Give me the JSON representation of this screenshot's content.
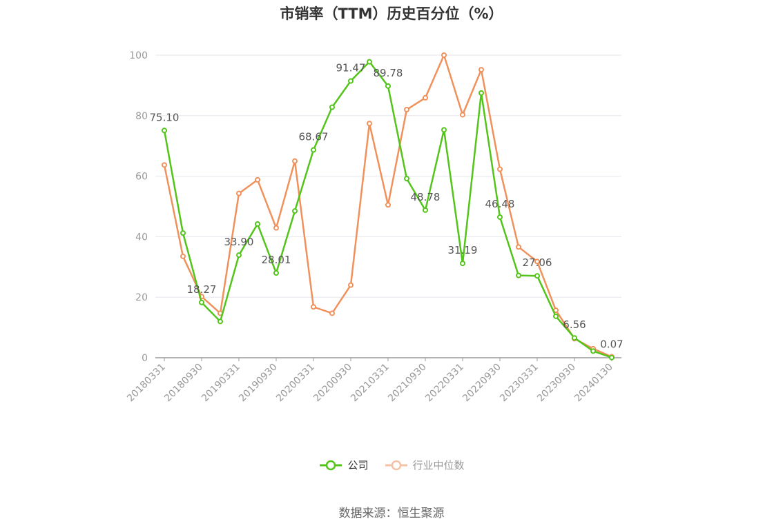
{
  "title": "市销率（TTM）历史百分位（%）",
  "source": "数据来源：恒生聚源",
  "chart_data": {
    "type": "line",
    "ylim": [
      0,
      100
    ],
    "yticks": [
      0,
      20,
      40,
      60,
      80,
      100
    ],
    "x": [
      "20180331",
      "20180630",
      "20180930",
      "20181231",
      "20190331",
      "20190630",
      "20190930",
      "20191231",
      "20200331",
      "20200630",
      "20200930",
      "20201231",
      "20210331",
      "20210630",
      "20210930",
      "20211231",
      "20220331",
      "20220630",
      "20220930",
      "20221231",
      "20230331",
      "20230630",
      "20230930",
      "20231231",
      "20240130"
    ],
    "xtick_labels": [
      "20180331",
      "20180930",
      "20190331",
      "20190930",
      "20200331",
      "20200930",
      "20210331",
      "20210930",
      "20220331",
      "20220930",
      "20230331",
      "20230930",
      "20240130"
    ],
    "grid": true,
    "legend": "bottom-center",
    "series": [
      {
        "name": "公司",
        "color": "#52c41a",
        "values": [
          75.1,
          41.2,
          18.27,
          12.0,
          33.9,
          44.2,
          28.01,
          48.5,
          68.67,
          82.8,
          91.47,
          97.8,
          89.78,
          59.2,
          48.78,
          75.3,
          31.19,
          87.5,
          46.48,
          27.2,
          27.06,
          13.7,
          6.56,
          2.2,
          0.07
        ],
        "labels": {
          "0": "75.10",
          "2": "18.27",
          "4": "33.90",
          "6": "28.01",
          "8": "68.67",
          "10": "91.47",
          "12": "89.78",
          "14": "48.78",
          "16": "31.19",
          "18": "46.48",
          "20": "27.06",
          "22": "6.56",
          "24": "0.07"
        }
      },
      {
        "name": "行业中位数",
        "color": "#f0915c",
        "values": [
          63.7,
          33.5,
          20.2,
          14.7,
          54.3,
          58.8,
          42.9,
          65.0,
          16.8,
          14.7,
          24.0,
          77.4,
          50.5,
          82.0,
          85.9,
          100.0,
          80.3,
          95.2,
          62.3,
          36.6,
          31.8,
          15.7,
          6.3,
          3.0,
          0.3
        ]
      }
    ]
  }
}
